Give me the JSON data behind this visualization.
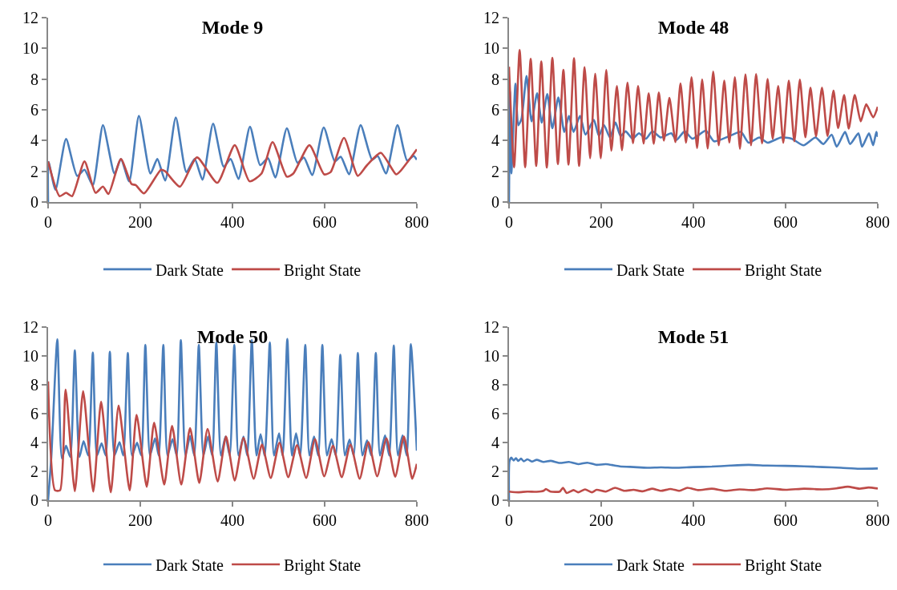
{
  "chart_data": [
    {
      "type": "line",
      "title": "Mode 9",
      "xlim": [
        0,
        800
      ],
      "xticks": [
        0,
        200,
        400,
        600,
        800
      ],
      "ylim": [
        0,
        12
      ],
      "yticks": [
        0,
        2,
        4,
        6,
        8,
        10,
        12
      ],
      "grid": false,
      "legend": "bottom",
      "series": [
        {
          "name": "Dark State",
          "color": "#4a7ebb",
          "x": [
            0,
            1,
            16,
            39,
            63,
            79,
            97,
            119,
            144,
            158,
            176,
            197,
            222,
            237,
            254,
            277,
            300,
            318,
            335,
            358,
            381,
            396,
            413,
            438,
            460,
            477,
            493,
            518,
            541,
            555,
            573,
            598,
            622,
            635,
            653,
            678,
            703,
            715,
            733,
            758,
            779,
            793,
            800
          ],
          "values": [
            0,
            2.6,
            0.8,
            4.1,
            1.7,
            2.1,
            1.1,
            5.0,
            1.85,
            2.8,
            1.35,
            5.6,
            1.85,
            2.8,
            1.4,
            5.5,
            1.95,
            2.8,
            1.45,
            5.1,
            2.3,
            2.8,
            1.5,
            4.9,
            2.4,
            2.85,
            1.6,
            4.8,
            2.55,
            2.9,
            1.75,
            4.85,
            2.65,
            2.95,
            1.8,
            5.0,
            2.75,
            3.0,
            1.85,
            5.0,
            2.7,
            3.0,
            2.75
          ]
        },
        {
          "name": "Bright State",
          "color": "#be4b48",
          "x": [
            0,
            25,
            39,
            52,
            79,
            103,
            119,
            131,
            158,
            181,
            190,
            208,
            245,
            254,
            286,
            323,
            367,
            405,
            437,
            463,
            487,
            518,
            532,
            567,
            599,
            613,
            642,
            672,
            692,
            722,
            755,
            764,
            800
          ],
          "values": [
            2.64,
            0.38,
            0.6,
            0.38,
            2.64,
            0.6,
            1.0,
            0.52,
            2.8,
            1.17,
            1.1,
            0.56,
            2.1,
            2.0,
            1.0,
            2.9,
            1.25,
            3.7,
            1.35,
            1.85,
            3.9,
            1.65,
            1.85,
            3.7,
            1.8,
            1.95,
            4.17,
            1.7,
            2.4,
            3.2,
            1.8,
            2.0,
            3.43
          ]
        }
      ]
    },
    {
      "type": "line",
      "title": "Mode 48",
      "xlim": [
        0,
        800
      ],
      "xticks": [
        0,
        200,
        400,
        600,
        800
      ],
      "ylim": [
        0,
        12
      ],
      "yticks": [
        0,
        2,
        4,
        6,
        8,
        10,
        12
      ],
      "grid": false,
      "legend": "bottom",
      "series": [
        {
          "name": "Dark State",
          "color": "#4a7ebb",
          "x": [
            0,
            2,
            5,
            14,
            20,
            27,
            38,
            49,
            61,
            71,
            83,
            94,
            107,
            120,
            130,
            140,
            154,
            166,
            184,
            195,
            206,
            219,
            231,
            242,
            253,
            268,
            282,
            297,
            311,
            329,
            352,
            363,
            381,
            398,
            427,
            445,
            479,
            503,
            520,
            543,
            561,
            590,
            613,
            639,
            665,
            682,
            700,
            711,
            729,
            740,
            758,
            766,
            781,
            790,
            797,
            800
          ],
          "values": [
            0,
            7.2,
            1.86,
            7.7,
            5.0,
            5.4,
            8.2,
            5.25,
            7.08,
            5.17,
            7.03,
            4.8,
            6.8,
            4.56,
            5.6,
            4.56,
            5.6,
            4.38,
            5.34,
            4.3,
            5.0,
            4.2,
            5.17,
            4.3,
            4.6,
            4.12,
            4.47,
            4.12,
            4.6,
            4.2,
            4.47,
            4.03,
            4.6,
            4.12,
            4.64,
            3.95,
            4.3,
            4.56,
            3.86,
            4.2,
            3.86,
            4.2,
            4.12,
            3.69,
            4.2,
            3.77,
            4.38,
            3.6,
            4.56,
            3.77,
            4.47,
            3.6,
            4.47,
            3.69,
            4.56,
            4.24
          ]
        },
        {
          "name": "Bright State",
          "color": "#be4b48",
          "x": [
            0,
            11,
            23,
            35,
            47,
            59,
            70,
            82,
            94,
            106,
            118,
            129,
            141,
            152,
            164,
            176,
            187,
            199,
            211,
            222,
            234,
            245,
            257,
            269,
            280,
            292,
            303,
            314,
            325,
            336,
            348,
            361,
            372,
            384,
            396,
            408,
            419,
            431,
            443,
            455,
            467,
            478,
            490,
            501,
            513,
            525,
            536,
            549,
            561,
            572,
            584,
            595,
            607,
            619,
            631,
            643,
            654,
            666,
            679,
            691,
            704,
            714,
            727,
            737,
            750,
            763,
            775,
            790,
            800
          ],
          "values": [
            8.8,
            2.26,
            9.9,
            2.26,
            9.32,
            2.35,
            9.16,
            2.24,
            9.39,
            2.47,
            8.6,
            2.43,
            9.36,
            2.35,
            8.78,
            2.85,
            8.35,
            2.85,
            8.59,
            3.34,
            7.55,
            3.37,
            7.77,
            3.83,
            7.55,
            3.81,
            7.08,
            3.79,
            7.13,
            4.0,
            6.78,
            3.9,
            7.72,
            3.86,
            8.12,
            3.51,
            7.98,
            3.48,
            8.49,
            3.69,
            7.9,
            3.86,
            8.12,
            3.46,
            8.3,
            3.69,
            8.33,
            3.81,
            8.0,
            4.12,
            7.55,
            3.86,
            7.9,
            3.95,
            7.97,
            4.21,
            7.44,
            4.28,
            7.44,
            4.3,
            7.25,
            4.82,
            6.96,
            4.78,
            6.96,
            5.25,
            6.36,
            5.51,
            6.2
          ]
        }
      ]
    },
    {
      "type": "line",
      "title": "Mode 50",
      "xlim": [
        0,
        800
      ],
      "xticks": [
        0,
        200,
        400,
        600,
        800
      ],
      "ylim": [
        0,
        12
      ],
      "yticks": [
        0,
        2,
        4,
        6,
        8,
        10,
        12
      ],
      "grid": false,
      "legend": "bottom",
      "series": [
        {
          "name": "Dark State",
          "color": "#4a7ebb",
          "x": [
            0,
            7,
            20,
            30,
            39,
            48,
            58,
            68,
            77,
            87,
            97,
            106,
            116,
            125,
            134,
            144,
            155,
            163,
            173,
            182,
            193,
            202,
            211,
            221,
            232,
            240,
            250,
            259,
            270,
            279,
            288,
            298,
            308,
            317,
            327,
            337,
            347,
            356,
            365,
            375,
            385,
            394,
            404,
            413,
            424,
            432,
            442,
            452,
            461,
            470,
            481,
            490,
            501,
            509,
            519,
            529,
            538,
            547,
            558,
            567,
            577,
            586,
            595,
            605,
            615,
            624,
            634,
            644,
            654,
            663,
            672,
            682,
            692,
            701,
            711,
            720,
            731,
            740,
            750,
            759,
            769,
            778,
            787,
            800
          ],
          "values": [
            0,
            3.0,
            11.15,
            2.9,
            3.77,
            3.0,
            10.38,
            3.0,
            4.1,
            3.1,
            10.24,
            3.1,
            3.94,
            3.1,
            10.29,
            3.1,
            4.03,
            3.1,
            10.2,
            3.1,
            3.98,
            3.1,
            10.76,
            3.1,
            4.29,
            3.1,
            10.76,
            3.1,
            4.24,
            3.1,
            11.1,
            3.1,
            4.46,
            3.1,
            10.76,
            3.1,
            4.41,
            3.1,
            10.93,
            3.1,
            4.41,
            3.1,
            10.76,
            3.1,
            4.41,
            3.1,
            11.1,
            3.1,
            4.58,
            3.1,
            10.93,
            3.1,
            4.63,
            3.1,
            11.18,
            3.1,
            4.63,
            3.1,
            10.76,
            3.1,
            4.41,
            3.1,
            10.76,
            3.1,
            4.24,
            3.1,
            10.08,
            3.1,
            4.2,
            3.1,
            10.2,
            3.1,
            4.15,
            3.1,
            10.2,
            3.1,
            4.5,
            3.1,
            10.72,
            3.1,
            4.5,
            3.1,
            10.81,
            3.43
          ]
        },
        {
          "name": "Bright State",
          "color": "#be4b48",
          "x": [
            0,
            15,
            26,
            38,
            58,
            76,
            98,
            115,
            136,
            153,
            177,
            192,
            214,
            230,
            252,
            269,
            289,
            308,
            328,
            346,
            368,
            386,
            405,
            424,
            446,
            464,
            483,
            502,
            521,
            540,
            560,
            579,
            599,
            618,
            637,
            656,
            676,
            695,
            714,
            734,
            753,
            772,
            790,
            800
          ],
          "values": [
            8.23,
            0.69,
            0.69,
            7.67,
            0.63,
            7.55,
            0.6,
            6.83,
            0.55,
            6.55,
            0.69,
            5.92,
            0.94,
            5.37,
            1.08,
            5.15,
            1.08,
            5.0,
            1.2,
            4.94,
            1.29,
            4.41,
            1.37,
            4.32,
            1.49,
            3.86,
            1.54,
            3.98,
            1.6,
            3.81,
            1.54,
            4.24,
            1.66,
            3.77,
            1.6,
            3.86,
            1.49,
            4.03,
            1.66,
            4.29,
            1.63,
            4.41,
            1.49,
            2.52
          ]
        }
      ]
    },
    {
      "type": "line",
      "title": "Mode 51",
      "xlim": [
        0,
        800
      ],
      "xticks": [
        0,
        200,
        400,
        600,
        800
      ],
      "ylim": [
        0,
        12
      ],
      "yticks": [
        0,
        2,
        4,
        6,
        8,
        10,
        12
      ],
      "grid": false,
      "legend": "bottom",
      "series": [
        {
          "name": "Dark State",
          "color": "#4a7ebb",
          "x": [
            0,
            1,
            5,
            10,
            15,
            20,
            26,
            32,
            40,
            50,
            60,
            75,
            90,
            110,
            130,
            150,
            170,
            190,
            210,
            240,
            270,
            300,
            330,
            360,
            400,
            440,
            480,
            520,
            560,
            600,
            640,
            680,
            720,
            760,
            800
          ],
          "values": [
            0,
            2.7,
            2.95,
            2.75,
            2.92,
            2.72,
            2.88,
            2.7,
            2.83,
            2.68,
            2.8,
            2.65,
            2.73,
            2.58,
            2.65,
            2.5,
            2.6,
            2.45,
            2.5,
            2.35,
            2.3,
            2.25,
            2.28,
            2.25,
            2.3,
            2.33,
            2.4,
            2.45,
            2.4,
            2.38,
            2.35,
            2.3,
            2.25,
            2.18,
            2.2
          ]
        },
        {
          "name": "Bright State",
          "color": "#be4b48",
          "x": [
            0,
            20,
            40,
            60,
            75,
            80,
            90,
            110,
            117,
            125,
            140,
            150,
            165,
            180,
            190,
            210,
            230,
            250,
            270,
            290,
            310,
            330,
            350,
            370,
            387,
            410,
            440,
            470,
            500,
            530,
            560,
            600,
            640,
            680,
            710,
            735,
            760,
            780,
            800
          ],
          "values": [
            0.6,
            0.55,
            0.6,
            0.58,
            0.65,
            0.77,
            0.6,
            0.6,
            0.86,
            0.5,
            0.7,
            0.55,
            0.75,
            0.55,
            0.72,
            0.6,
            0.86,
            0.65,
            0.72,
            0.62,
            0.8,
            0.65,
            0.78,
            0.65,
            0.86,
            0.7,
            0.8,
            0.65,
            0.75,
            0.7,
            0.82,
            0.72,
            0.8,
            0.75,
            0.82,
            0.94,
            0.8,
            0.88,
            0.81
          ]
        }
      ]
    }
  ]
}
